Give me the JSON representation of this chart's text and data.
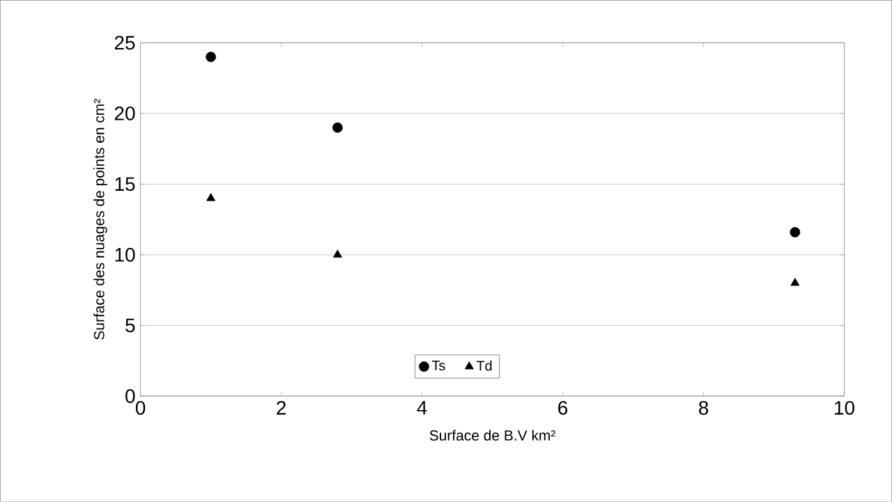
{
  "chart_data": {
    "type": "scatter",
    "xlabel": "Surface de B.V km²",
    "ylabel": "Surface des nuages de points en cm²",
    "x": [
      1,
      2.8,
      9.3
    ],
    "series": [
      {
        "name": "Ts",
        "color": "#000000",
        "marker": "circle",
        "values": [
          24,
          19,
          11.6
        ]
      },
      {
        "name": "Td",
        "color": "#000000",
        "marker": "triangle",
        "values": [
          14,
          10,
          8
        ]
      }
    ],
    "xlim": [
      0,
      10
    ],
    "xticks": [
      0,
      2,
      4,
      6,
      8,
      10
    ],
    "ylim": [
      0,
      25
    ],
    "yticks": [
      0,
      5,
      10,
      15,
      20,
      25
    ],
    "grid": "y",
    "legend": "bottom"
  }
}
